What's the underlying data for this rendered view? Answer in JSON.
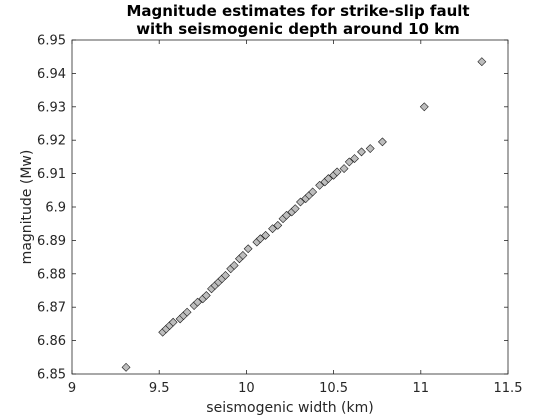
{
  "chart_data": {
    "type": "scatter",
    "title": [
      "Magnitude estimates for strike-slip fault",
      "with seismogenic depth around 10 km"
    ],
    "xlabel": "seismogenic width (km)",
    "ylabel": "magnitude (Mw)",
    "xlim": [
      9,
      11.5
    ],
    "ylim": [
      6.85,
      6.95
    ],
    "xticks": [
      9,
      9.5,
      10,
      10.5,
      11,
      11.5
    ],
    "xtick_labels": [
      "9",
      "9.5",
      "10",
      "10.5",
      "11",
      "11.5"
    ],
    "yticks": [
      6.85,
      6.86,
      6.87,
      6.88,
      6.89,
      6.9,
      6.91,
      6.92,
      6.93,
      6.94,
      6.95
    ],
    "ytick_labels": [
      "6.85",
      "6.86",
      "6.87",
      "6.88",
      "6.89",
      "6.9",
      "6.91",
      "6.92",
      "6.93",
      "6.94",
      "6.95"
    ],
    "grid": false,
    "marker": "diamond",
    "marker_color": "#bdbdbd",
    "points": [
      [
        9.31,
        6.852
      ],
      [
        9.52,
        6.8625
      ],
      [
        9.54,
        6.8635
      ],
      [
        9.56,
        6.8645
      ],
      [
        9.58,
        6.8655
      ],
      [
        9.62,
        6.8665
      ],
      [
        9.64,
        6.8675
      ],
      [
        9.66,
        6.8685
      ],
      [
        9.7,
        6.8705
      ],
      [
        9.72,
        6.8715
      ],
      [
        9.75,
        6.8725
      ],
      [
        9.77,
        6.8735
      ],
      [
        9.8,
        6.8755
      ],
      [
        9.82,
        6.8765
      ],
      [
        9.84,
        6.8775
      ],
      [
        9.86,
        6.8785
      ],
      [
        9.88,
        6.8795
      ],
      [
        9.91,
        6.8815
      ],
      [
        9.93,
        6.8825
      ],
      [
        9.96,
        6.8845
      ],
      [
        9.98,
        6.8855
      ],
      [
        10.01,
        6.8875
      ],
      [
        10.06,
        6.8895
      ],
      [
        10.08,
        6.8905
      ],
      [
        10.11,
        6.8915
      ],
      [
        10.15,
        6.8935
      ],
      [
        10.18,
        6.8945
      ],
      [
        10.21,
        6.8965
      ],
      [
        10.23,
        6.8975
      ],
      [
        10.26,
        6.8985
      ],
      [
        10.28,
        6.8995
      ],
      [
        10.31,
        6.9015
      ],
      [
        10.34,
        6.9025
      ],
      [
        10.36,
        6.9035
      ],
      [
        10.38,
        6.9045
      ],
      [
        10.42,
        6.9065
      ],
      [
        10.45,
        6.9075
      ],
      [
        10.47,
        6.9085
      ],
      [
        10.5,
        6.9095
      ],
      [
        10.52,
        6.9105
      ],
      [
        10.56,
        6.9115
      ],
      [
        10.59,
        6.9135
      ],
      [
        10.62,
        6.9145
      ],
      [
        10.66,
        6.9165
      ],
      [
        10.71,
        6.9175
      ],
      [
        10.78,
        6.9195
      ],
      [
        11.02,
        6.93
      ],
      [
        11.35,
        6.9435
      ]
    ]
  }
}
